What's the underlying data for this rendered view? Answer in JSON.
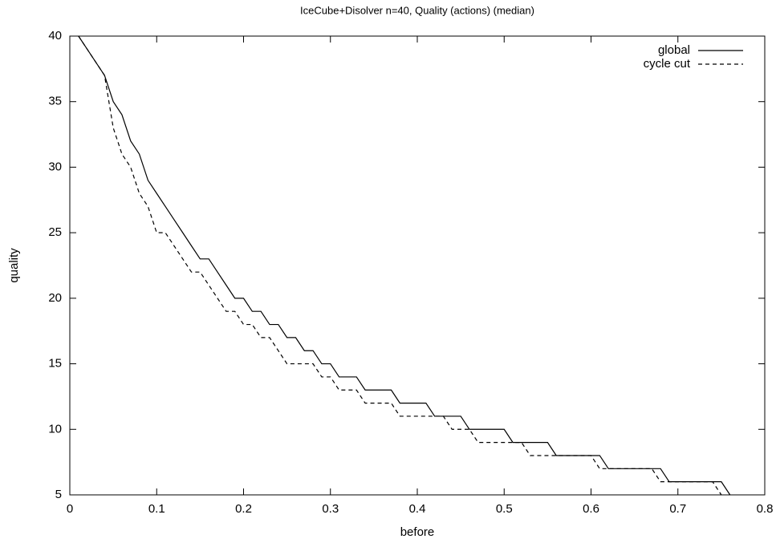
{
  "chart_data": {
    "type": "line",
    "title": "IceCube+Disolver n=40, Quality (actions) (median)",
    "x_label": "before",
    "y_label": "quality",
    "x": [
      0.01,
      0.02,
      0.03,
      0.04,
      0.05,
      0.06,
      0.07,
      0.08,
      0.09,
      0.1,
      0.11,
      0.12,
      0.13,
      0.14,
      0.15,
      0.16,
      0.17,
      0.18,
      0.19,
      0.2,
      0.21,
      0.22,
      0.23,
      0.24,
      0.25,
      0.26,
      0.27,
      0.28,
      0.29,
      0.3,
      0.31,
      0.32,
      0.33,
      0.34,
      0.35,
      0.36,
      0.37,
      0.38,
      0.39,
      0.4,
      0.41,
      0.42,
      0.43,
      0.44,
      0.45,
      0.46,
      0.47,
      0.48,
      0.49,
      0.5,
      0.51,
      0.52,
      0.53,
      0.54,
      0.55,
      0.56,
      0.57,
      0.58,
      0.59,
      0.6,
      0.61,
      0.62,
      0.63,
      0.64,
      0.65,
      0.66,
      0.67,
      0.68,
      0.69,
      0.7,
      0.71,
      0.72,
      0.73,
      0.74,
      0.75,
      0.76
    ],
    "series": [
      {
        "name": "global",
        "color": "#000000",
        "dash": false,
        "values": [
          40,
          39,
          38,
          37,
          35,
          34,
          32,
          31,
          29,
          28,
          27,
          26,
          25,
          24,
          23,
          23,
          22,
          21,
          20,
          20,
          19,
          19,
          18,
          18,
          17,
          17,
          16,
          16,
          15,
          15,
          14,
          14,
          14,
          13,
          13,
          13,
          13,
          12,
          12,
          12,
          12,
          11,
          11,
          11,
          11,
          10,
          10,
          10,
          10,
          10,
          9,
          9,
          9,
          9,
          9,
          8,
          8,
          8,
          8,
          8,
          8,
          7,
          7,
          7,
          7,
          7,
          7,
          7,
          6,
          6,
          6,
          6,
          6,
          6,
          6,
          5
        ]
      },
      {
        "name": "cycle cut",
        "color": "#000000",
        "dash": true,
        "values": [
          40,
          39,
          38,
          37,
          33,
          31,
          30,
          28,
          27,
          25,
          25,
          24,
          23,
          22,
          22,
          21,
          20,
          19,
          19,
          18,
          18,
          17,
          17,
          16,
          15,
          15,
          15,
          15,
          14,
          14,
          13,
          13,
          13,
          12,
          12,
          12,
          12,
          11,
          11,
          11,
          11,
          11,
          11,
          10,
          10,
          10,
          9,
          9,
          9,
          9,
          9,
          9,
          8,
          8,
          8,
          8,
          8,
          8,
          8,
          8,
          7,
          7,
          7,
          7,
          7,
          7,
          7,
          6,
          6,
          6,
          6,
          6,
          6,
          6,
          5,
          null
        ]
      }
    ],
    "xlim": [
      0,
      0.8
    ],
    "ylim": [
      5,
      40
    ],
    "xticks": [
      0,
      0.1,
      0.2,
      0.3,
      0.4,
      0.5,
      0.6,
      0.7,
      0.8
    ],
    "yticks": [
      5,
      10,
      15,
      20,
      25,
      30,
      35,
      40
    ],
    "grid": false,
    "legend": "top-right"
  }
}
